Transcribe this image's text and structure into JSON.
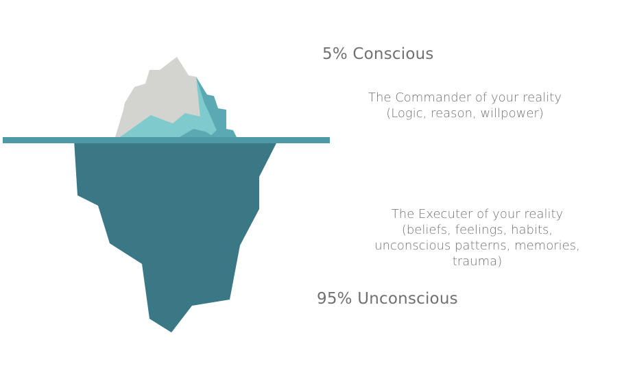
{
  "conscious": {
    "heading": "5% Conscious",
    "lines": [
      "The Commander of your reality",
      "(Logic, reason, willpower)"
    ]
  },
  "unconscious": {
    "heading": "95% Unconscious",
    "lines": [
      "The Executer of your reality",
      "(beliefs, feelings, habits,",
      "unconscious patterns, memories,",
      "trauma)"
    ]
  },
  "colors": {
    "ice_top": "#d3d3cf",
    "ice_light_teal": "#7ecacd",
    "ice_mid_teal": "#5aa9b3",
    "waterline": "#4d9aa6",
    "ice_underwater": "#3a7886",
    "text": "#707070"
  }
}
